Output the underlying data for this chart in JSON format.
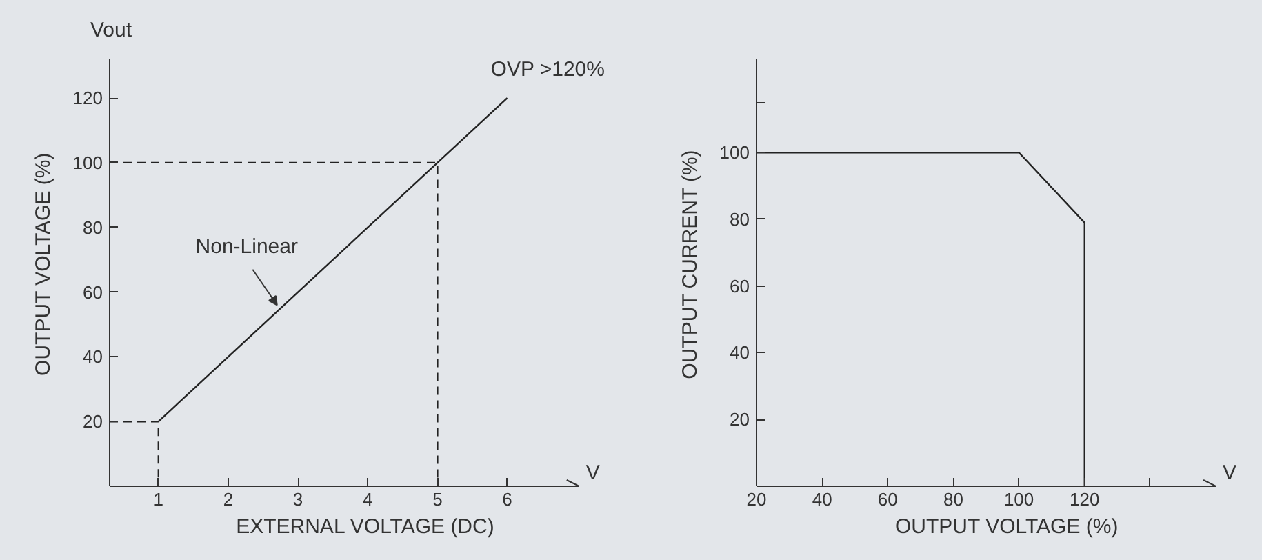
{
  "chart_data": [
    {
      "type": "line",
      "xlabel": "EXTERNAL VOLTAGE (DC)",
      "ylabel": "OUTPUT VOLTAGE (%)",
      "xlim": [
        0.3,
        7.03
      ],
      "ylim": [
        0,
        132
      ],
      "xticks": [
        1,
        2,
        3,
        4,
        5,
        6
      ],
      "yticks": [
        20,
        40,
        60,
        80,
        100,
        120
      ],
      "grid": false,
      "marker": "none",
      "series": [
        {
          "x": [
            1,
            6
          ],
          "values": [
            20,
            120
          ],
          "color": "#222222",
          "line_style": "solid"
        },
        {
          "x": [
            0.3,
            1,
            1
          ],
          "values": [
            20,
            20,
            0
          ],
          "color": "#222222",
          "line_style": "dashed"
        },
        {
          "x": [
            0.3,
            5,
            5
          ],
          "values": [
            100,
            100,
            0
          ],
          "color": "#222222",
          "line_style": "dashed"
        }
      ],
      "annotations": [
        "Vout",
        "V",
        {
          "text": "Non-Linear",
          "x": 2.7,
          "y": 55
        },
        {
          "text": "OVP >120%",
          "x": 6,
          "y": 120
        }
      ]
    },
    {
      "type": "line",
      "xlabel": "OUTPUT VOLTAGE (%)",
      "ylabel": "OUTPUT CURRENT (%)",
      "xlim": [
        20,
        160
      ],
      "ylim": [
        0,
        128
      ],
      "xticks": [
        20,
        40,
        60,
        80,
        100,
        120,
        {
          "value": 140,
          "label": null
        }
      ],
      "yticks": [
        20,
        40,
        60,
        80,
        100,
        {
          "value": 115,
          "label": null
        }
      ],
      "grid": false,
      "marker": "none",
      "series": [
        {
          "x": [
            20,
            100,
            120,
            120
          ],
          "values": [
            100,
            100,
            79,
            0
          ],
          "color": "#222222",
          "line_style": "solid"
        }
      ],
      "annotations": [
        "V"
      ]
    }
  ]
}
